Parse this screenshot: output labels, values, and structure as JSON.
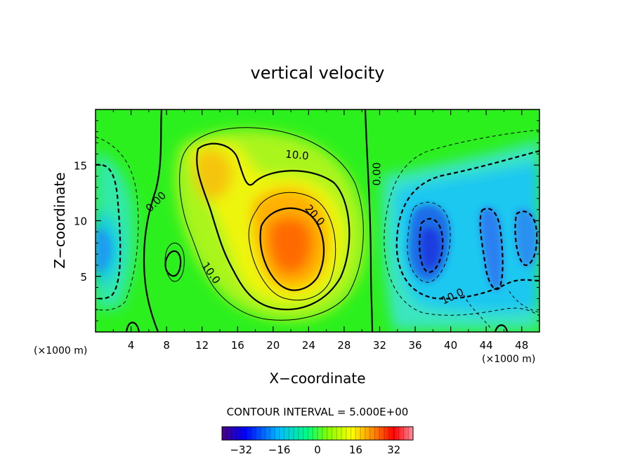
{
  "chart_data": {
    "type": "heatmap",
    "title": "vertical velocity",
    "xlabel": "X−coordinate",
    "ylabel": "Z−coordinate",
    "x_units": "(×1000 m)",
    "y_units": "(×1000 m)",
    "xlim": [
      0,
      50
    ],
    "ylim": [
      0,
      20
    ],
    "x_ticks": [
      4,
      8,
      12,
      16,
      20,
      24,
      28,
      32,
      36,
      40,
      44,
      48
    ],
    "y_ticks": [
      5,
      10,
      15
    ],
    "contour_interval_text": "CONTOUR INTERVAL = 5.000E+00",
    "contour_interval": 5,
    "contour_labels": [
      {
        "text": "10.0",
        "x": 22.7,
        "z": 15.9,
        "rotate": 5
      },
      {
        "text": "0.00",
        "x": 31.7,
        "z": 14.2,
        "rotate": -90
      },
      {
        "text": "0.00",
        "x": 6.8,
        "z": 11.7,
        "rotate": -45
      },
      {
        "text": "20.0",
        "x": 24.7,
        "z": 10.5,
        "rotate": 48
      },
      {
        "text": "10.0",
        "x": 13.0,
        "z": 5.3,
        "rotate": 55
      },
      {
        "text": "10.0",
        "x": 40.2,
        "z": 3.2,
        "rotate": -25
      }
    ],
    "colorbar": {
      "min": -40,
      "max": 40,
      "ticks": [
        -32,
        -16,
        0,
        16,
        32
      ],
      "tick_labels": [
        "−32",
        "−16",
        "0",
        "16",
        "32"
      ],
      "colors": [
        "#4b0080",
        "#0000ff",
        "#00bfff",
        "#00ff7f",
        "#7fff00",
        "#ffff00",
        "#ff8000",
        "#ff0000",
        "#ff90a0"
      ]
    },
    "field_features": [
      {
        "kind": "updraft",
        "peak_w": 26,
        "x": 22.5,
        "z": 7.5
      },
      {
        "kind": "updraft",
        "peak_w": 14,
        "x": 13.5,
        "z": 14.5
      },
      {
        "kind": "downdraft",
        "peak_w": -22,
        "x": 37.5,
        "z": 7.0
      },
      {
        "kind": "downdraft",
        "peak_w": -17,
        "x": 45.5,
        "z": 6.0
      },
      {
        "kind": "downdraft",
        "peak_w": -14,
        "x": 1.0,
        "z": 7.5
      }
    ]
  }
}
